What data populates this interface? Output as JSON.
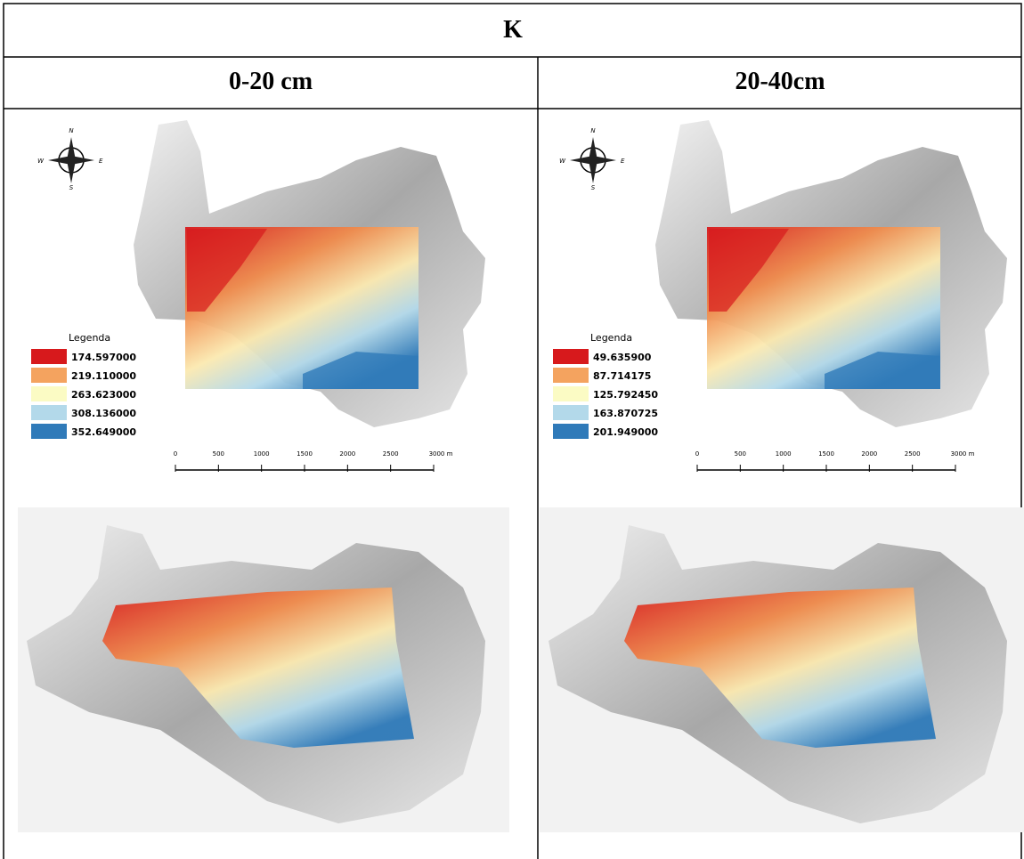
{
  "header": {
    "title": "K"
  },
  "columns": [
    {
      "heading": "0-20 cm",
      "compass": [
        "N",
        "S",
        "E",
        "W"
      ],
      "legend": {
        "title": "Legenda",
        "items": [
          {
            "label": "174.597000",
            "color": "#d7191c"
          },
          {
            "label": "219.110000",
            "color": "#f4a35f"
          },
          {
            "label": "263.623000",
            "color": "#fbfbc4"
          },
          {
            "label": "308.136000",
            "color": "#b3d9ea"
          },
          {
            "label": "352.649000",
            "color": "#2f7ab9"
          }
        ]
      },
      "scale": [
        "0",
        "500",
        "1000",
        "1500",
        "2000",
        "2500",
        "3000 m"
      ]
    },
    {
      "heading": "20-40cm",
      "compass": [
        "N",
        "S",
        "E",
        "W"
      ],
      "legend": {
        "title": "Legenda",
        "items": [
          {
            "label": "49.635900",
            "color": "#d7191c"
          },
          {
            "label": "87.714175",
            "color": "#f4a35f"
          },
          {
            "label": "125.792450",
            "color": "#fbfbc4"
          },
          {
            "label": "163.870725",
            "color": "#b3d9ea"
          },
          {
            "label": "201.949000",
            "color": "#2f7ab9"
          }
        ]
      },
      "scale": [
        "0",
        "500",
        "1000",
        "1500",
        "2000",
        "2500",
        "3000 m"
      ]
    }
  ]
}
